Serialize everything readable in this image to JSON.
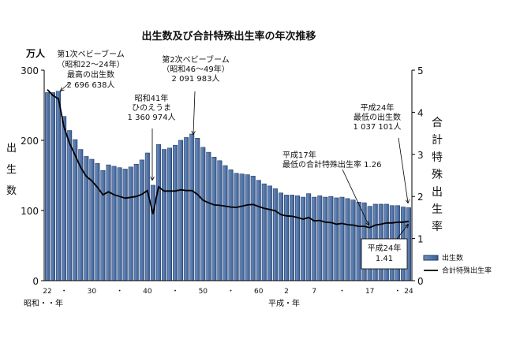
{
  "chart_data": {
    "type": "bar",
    "title": "出生数及び合計特殊出生率の年次推移",
    "ylabel_left_unit": "万人",
    "ylabel_left": "出生数",
    "ylabel_right": "合計特殊出生率",
    "ylim_left": [
      0,
      300
    ],
    "ylim_right": [
      0,
      5
    ],
    "yticks_left": [
      "0",
      "100",
      "200",
      "300"
    ],
    "yticks_right": [
      "0",
      "1",
      "2",
      "3",
      "4",
      "5"
    ],
    "x_era_labels": [
      "昭和・・年",
      "平成・年"
    ],
    "xtick_labels": [
      {
        "year": 1947,
        "label": "22"
      },
      {
        "year": 1950,
        "label": "・"
      },
      {
        "year": 1955,
        "label": "30"
      },
      {
        "year": 1960,
        "label": "・"
      },
      {
        "year": 1965,
        "label": "40"
      },
      {
        "year": 1970,
        "label": "・"
      },
      {
        "year": 1975,
        "label": "50"
      },
      {
        "year": 1980,
        "label": "・"
      },
      {
        "year": 1985,
        "label": "60"
      },
      {
        "year": 1990,
        "label": "2"
      },
      {
        "year": 1995,
        "label": "7"
      },
      {
        "year": 2000,
        "label": "・"
      },
      {
        "year": 2005,
        "label": "17"
      },
      {
        "year": 2010,
        "label": "・"
      },
      {
        "year": 2012,
        "label": "24"
      }
    ],
    "x": [
      1947,
      1948,
      1949,
      1950,
      1951,
      1952,
      1953,
      1954,
      1955,
      1956,
      1957,
      1958,
      1959,
      1960,
      1961,
      1962,
      1963,
      1964,
      1965,
      1966,
      1967,
      1968,
      1969,
      1970,
      1971,
      1972,
      1973,
      1974,
      1975,
      1976,
      1977,
      1978,
      1979,
      1980,
      1981,
      1982,
      1983,
      1984,
      1985,
      1986,
      1987,
      1988,
      1989,
      1990,
      1991,
      1992,
      1993,
      1994,
      1995,
      1996,
      1997,
      1998,
      1999,
      2000,
      2001,
      2002,
      2003,
      2004,
      2005,
      2006,
      2007,
      2008,
      2009,
      2010,
      2011,
      2012
    ],
    "series": [
      {
        "name": "出生数",
        "type": "bar",
        "axis": "left",
        "color": "#4a6fa5",
        "values": [
          268,
          268,
          270,
          234,
          214,
          201,
          187,
          177,
          173,
          167,
          157,
          165,
          163,
          161,
          159,
          162,
          166,
          172,
          182,
          136,
          194,
          187,
          189,
          193,
          200,
          204,
          209,
          203,
          190,
          183,
          176,
          171,
          164,
          158,
          153,
          152,
          151,
          149,
          143,
          138,
          135,
          131,
          125,
          122,
          122,
          121,
          119,
          124,
          119,
          121,
          119,
          120,
          118,
          119,
          117,
          115,
          112,
          111,
          106,
          109,
          109,
          109,
          107,
          107,
          105,
          104
        ]
      },
      {
        "name": "合計特殊出生率",
        "type": "line",
        "axis": "right",
        "color": "#000000",
        "values": [
          4.54,
          4.4,
          4.32,
          3.65,
          3.26,
          2.98,
          2.69,
          2.48,
          2.37,
          2.22,
          2.04,
          2.11,
          2.04,
          2.0,
          1.96,
          1.98,
          2.0,
          2.05,
          2.14,
          1.58,
          2.23,
          2.13,
          2.13,
          2.13,
          2.16,
          2.14,
          2.14,
          2.05,
          1.91,
          1.85,
          1.8,
          1.79,
          1.77,
          1.75,
          1.74,
          1.77,
          1.8,
          1.81,
          1.76,
          1.72,
          1.69,
          1.66,
          1.57,
          1.54,
          1.53,
          1.5,
          1.46,
          1.5,
          1.42,
          1.43,
          1.39,
          1.38,
          1.34,
          1.36,
          1.33,
          1.32,
          1.29,
          1.29,
          1.26,
          1.32,
          1.34,
          1.37,
          1.37,
          1.39,
          1.39,
          1.41
        ]
      }
    ],
    "legend": {
      "placement": "bottom-right",
      "entries": [
        "出生数",
        "合計特殊出生率"
      ]
    },
    "annotations": [
      {
        "lines": [
          "第1次ベビーブーム",
          "（昭和22～24年）",
          "最高の出生数",
          "2 696 638人"
        ]
      },
      {
        "lines": [
          "昭和41年",
          "ひのえうま",
          "1 360 974人"
        ]
      },
      {
        "lines": [
          "第2次ベビーブーム",
          "（昭和46～49年）",
          "2 091 983人"
        ]
      },
      {
        "lines": [
          "平成17年",
          "最低の合計特殊出生率 1.26"
        ]
      },
      {
        "lines": [
          "平成24年",
          "最低の出生数",
          "1 037 101人"
        ]
      },
      {
        "lines": [
          "平成24年",
          "1.41"
        ]
      }
    ],
    "grid": false
  }
}
